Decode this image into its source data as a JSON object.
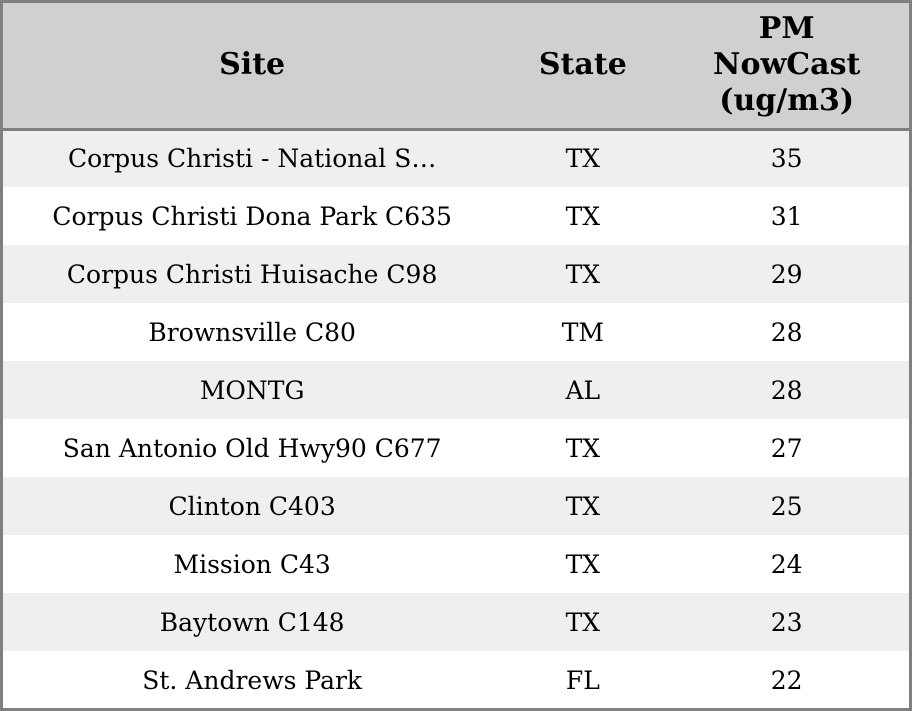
{
  "table": {
    "columns": [
      {
        "label": "Site"
      },
      {
        "label": "State"
      },
      {
        "label": "PM\nNowCast\n(ug/m3)"
      }
    ],
    "rows": [
      {
        "site": "Corpus Christi - National S…",
        "state": "TX",
        "value": 35
      },
      {
        "site": "Corpus Christi Dona Park C635",
        "state": "TX",
        "value": 31
      },
      {
        "site": "Corpus Christi Huisache C98",
        "state": "TX",
        "value": 29
      },
      {
        "site": "Brownsville C80",
        "state": "TM",
        "value": 28
      },
      {
        "site": "MONTG",
        "state": "AL",
        "value": 28
      },
      {
        "site": "San Antonio Old Hwy90 C677",
        "state": "TX",
        "value": 27
      },
      {
        "site": "Clinton C403",
        "state": "TX",
        "value": 25
      },
      {
        "site": "Mission C43",
        "state": "TX",
        "value": 24
      },
      {
        "site": "Baytown C148",
        "state": "TX",
        "value": 23
      },
      {
        "site": "St. Andrews Park",
        "state": "FL",
        "value": 22
      }
    ]
  },
  "colors": {
    "header_bg": "#d0d0d0",
    "row_alt_bg": "#efefef",
    "row_bg": "#ffffff",
    "border": "#808080",
    "text": "#000000"
  },
  "chart_data": {
    "type": "table",
    "columns": [
      "Site",
      "State",
      "PM NowCast (ug/m3)"
    ],
    "rows": [
      [
        "Corpus Christi - National S…",
        "TX",
        35
      ],
      [
        "Corpus Christi Dona Park C635",
        "TX",
        31
      ],
      [
        "Corpus Christi Huisache C98",
        "TX",
        29
      ],
      [
        "Brownsville C80",
        "TM",
        28
      ],
      [
        "MONTG",
        "AL",
        28
      ],
      [
        "San Antonio Old Hwy90 C677",
        "TX",
        27
      ],
      [
        "Clinton C403",
        "TX",
        25
      ],
      [
        "Mission C43",
        "TX",
        24
      ],
      [
        "Baytown C148",
        "TX",
        23
      ],
      [
        "St. Andrews Park",
        "FL",
        22
      ]
    ],
    "title": "",
    "legend": false,
    "grid": false
  }
}
